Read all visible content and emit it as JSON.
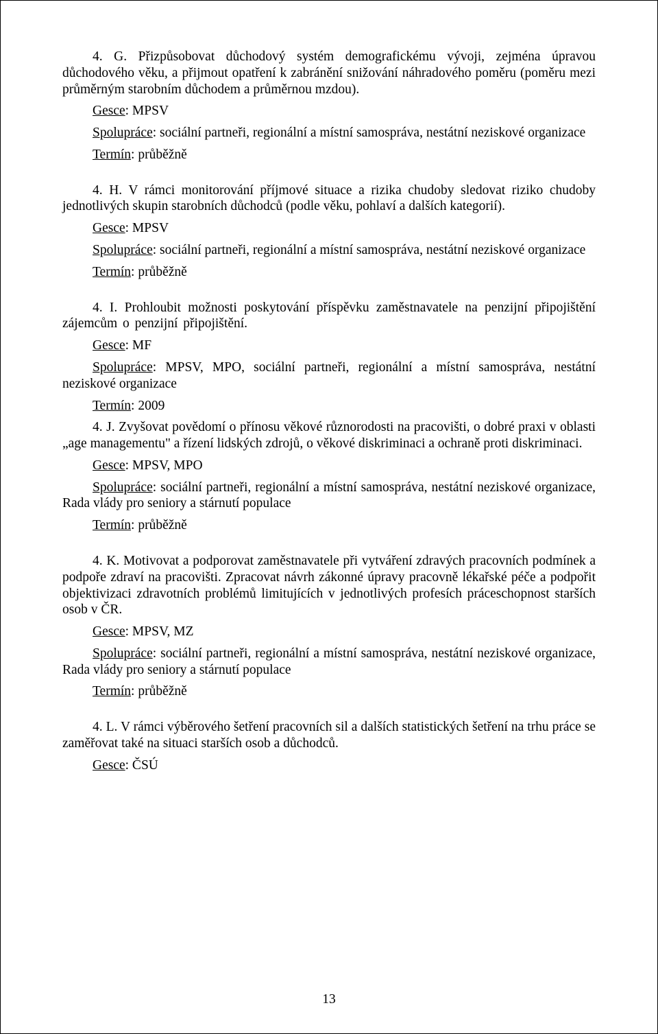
{
  "page_number": "13",
  "items": {
    "g": {
      "body": "4. G. Přizpůsobovat důchodový systém demografickému vývoji, zejména úpravou důchodového věku, a přijmout opatření k zabránění snižování náhradového poměru (poměru mezi průměrným starobním důchodem a průměrnou mzdou).",
      "gesce_label": "Gesce",
      "gesce_value": ": MPSV",
      "spoluprace_label": "Spolupráce",
      "spoluprace_value": ": sociální partneři, regionální a místní samospráva, nestátní neziskové organizace",
      "termin_label": "Termín",
      "termin_value": ": průběžně"
    },
    "h": {
      "body": "4. H. V rámci monitorování příjmové situace a rizika chudoby sledovat riziko chudoby jednotlivých skupin starobních důchodců (podle věku, pohlaví a dalších kategorií).",
      "gesce_label": "Gesce",
      "gesce_value": ": MPSV",
      "spoluprace_label": "Spolupráce",
      "spoluprace_value": ": sociální partneři, regionální a místní samospráva, nestátní neziskové organizace",
      "termin_label": "Termín",
      "termin_value": ": průběžně"
    },
    "i": {
      "body": "4. I. Prohloubit možnosti poskytování příspěvku zaměstnavatele na penzijní připojištění zájemcům o penzijní připojištění.",
      "gesce_label": "Gesce",
      "gesce_value": ": MF",
      "spoluprace_label": "Spolupráce",
      "spoluprace_value": ": MPSV, MPO, sociální partneři, regionální a místní samospráva, nestátní neziskové organizace",
      "termin_label": "Termín",
      "termin_value": ": 2009"
    },
    "j": {
      "body": "4. J. Zvyšovat povědomí o přínosu věkové různorodosti na pracovišti, o dobré praxi v oblasti „age managementu\" a řízení lidských zdrojů, o věkové diskriminaci a ochraně proti diskriminaci.",
      "gesce_label": "Gesce",
      "gesce_value": ": MPSV, MPO",
      "spoluprace_label": "Spolupráce",
      "spoluprace_value": ": sociální partneři, regionální a místní samospráva, nestátní neziskové organizace, Rada vlády pro seniory a stárnutí populace",
      "termin_label": "Termín",
      "termin_value": ": průběžně"
    },
    "k": {
      "body": "4. K. Motivovat a podporovat zaměstnavatele při vytváření zdravých pracovních podmínek a podpoře zdraví na pracovišti. Zpracovat návrh zákonné úpravy pracovně lékařské péče a podpořit objektivizaci zdravotních problémů limitujících v jednotlivých profesích práceschopnost starších osob v ČR.",
      "gesce_label": "Gesce",
      "gesce_value": ": MPSV, MZ",
      "spoluprace_label": "Spolupráce",
      "spoluprace_value": ": sociální partneři, regionální a místní samospráva, nestátní neziskové organizace, Rada vlády pro seniory a stárnutí populace",
      "termin_label": "Termín",
      "termin_value": ": průběžně"
    },
    "l": {
      "body": "4. L. V rámci výběrového šetření pracovních sil a dalších statistických šetření na trhu práce se zaměřovat také na situaci starších osob a důchodců.",
      "gesce_label": "Gesce",
      "gesce_value": ": ČSÚ"
    }
  }
}
